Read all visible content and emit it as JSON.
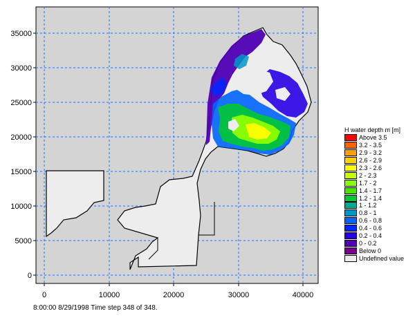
{
  "map": {
    "y_ticks": [
      "35000",
      "30000",
      "25000",
      "20000",
      "15000",
      "10000",
      "5000",
      "0"
    ],
    "x_ticks": [
      "0",
      "10000",
      "20000",
      "30000",
      "40000"
    ],
    "background_color": "#d4d4d4",
    "domain_fill": "#ededed",
    "grid_color": "#1f6fff"
  },
  "legend": {
    "title": "H water depth m [m]",
    "items": [
      {
        "label": "Above 3.5",
        "color": "#ff0000"
      },
      {
        "label": "3.2 - 3.5",
        "color": "#ff6400"
      },
      {
        "label": "2.9 - 3.2",
        "color": "#ffa000"
      },
      {
        "label": "2.6 - 2.9",
        "color": "#ffd200"
      },
      {
        "label": "2.3 - 2.6",
        "color": "#ffff00"
      },
      {
        "label": "2 - 2.3",
        "color": "#c8ff00"
      },
      {
        "label": "1.7 - 2",
        "color": "#8cff00"
      },
      {
        "label": "1.4 - 1.7",
        "color": "#46e600"
      },
      {
        "label": "1.2 - 1.4",
        "color": "#00c832"
      },
      {
        "label": "1 - 1.2",
        "color": "#00aa8c"
      },
      {
        "label": "0.8 - 1",
        "color": "#0096c8"
      },
      {
        "label": "0.6 - 0.8",
        "color": "#0064ff"
      },
      {
        "label": "0.4 - 0.6",
        "color": "#0028ff"
      },
      {
        "label": "0.2 - 0.4",
        "color": "#2800e6"
      },
      {
        "label": "0 - 0.2",
        "color": "#5000b4"
      },
      {
        "label": "Below 0",
        "color": "#78008c"
      },
      {
        "label": "Undefined value",
        "color": "#ededed"
      }
    ]
  },
  "status": "8:00:00 8/29/1998  Time step 348 of 348."
}
